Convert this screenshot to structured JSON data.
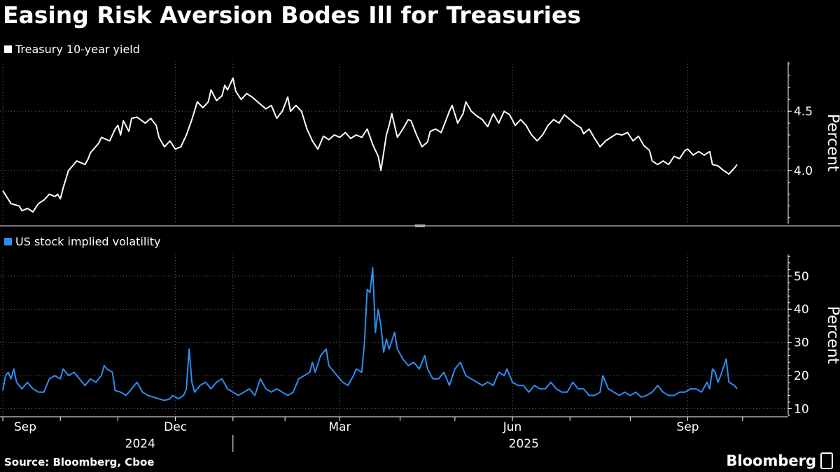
{
  "title": "Easing Risk Aversion Bodes Ill for Treasuries",
  "source": "Source: Bloomberg, Cboe",
  "brand": "Bloomberg",
  "colors": {
    "yield": "#ffffff",
    "vix": "#2e8ef0",
    "grid": "#666666",
    "background": "#000000"
  },
  "x_axis": {
    "months": [
      {
        "label": "Sep",
        "idx": 0
      },
      {
        "label": "Dec",
        "idx": 63
      },
      {
        "label": "Mar",
        "idx": 123
      },
      {
        "label": "Jun",
        "idx": 186
      },
      {
        "label": "Sep",
        "idx": 250
      }
    ],
    "minor_ticks": [
      21,
      42,
      84,
      103,
      145,
      165,
      207,
      229,
      270
    ],
    "years": [
      {
        "label": "2024",
        "idx": 20
      },
      {
        "label": "2025",
        "idx": 160
      }
    ],
    "year_divider_idx": 84,
    "n_points": 281
  },
  "chart_data": [
    {
      "type": "line",
      "title": "",
      "legend": "Treasury 10-year yield",
      "ylabel": "Percent",
      "ylim": [
        3.55,
        4.92
      ],
      "yticks": [
        4.0,
        4.5
      ],
      "ytick_labels": [
        "4.0",
        "4.5"
      ],
      "anchors": [
        [
          0,
          3.83
        ],
        [
          3,
          3.72
        ],
        [
          6,
          3.7
        ],
        [
          7,
          3.66
        ],
        [
          9,
          3.68
        ],
        [
          11,
          3.65
        ],
        [
          13,
          3.72
        ],
        [
          15,
          3.75
        ],
        [
          17,
          3.8
        ],
        [
          19,
          3.78
        ],
        [
          20,
          3.8
        ],
        [
          21,
          3.76
        ],
        [
          22,
          3.85
        ],
        [
          24,
          4.0
        ],
        [
          27,
          4.08
        ],
        [
          30,
          4.05
        ],
        [
          31,
          4.09
        ],
        [
          32,
          4.15
        ],
        [
          35,
          4.23
        ],
        [
          36,
          4.28
        ],
        [
          39,
          4.25
        ],
        [
          41,
          4.35
        ],
        [
          42,
          4.38
        ],
        [
          43,
          4.3
        ],
        [
          44,
          4.42
        ],
        [
          46,
          4.33
        ],
        [
          47,
          4.44
        ],
        [
          49,
          4.45
        ],
        [
          52,
          4.4
        ],
        [
          54,
          4.44
        ],
        [
          56,
          4.38
        ],
        [
          57,
          4.28
        ],
        [
          59,
          4.2
        ],
        [
          61,
          4.25
        ],
        [
          63,
          4.18
        ],
        [
          65,
          4.2
        ],
        [
          67,
          4.3
        ],
        [
          69,
          4.43
        ],
        [
          71,
          4.58
        ],
        [
          73,
          4.53
        ],
        [
          75,
          4.58
        ],
        [
          76,
          4.68
        ],
        [
          78,
          4.59
        ],
        [
          80,
          4.63
        ],
        [
          81,
          4.72
        ],
        [
          82,
          4.68
        ],
        [
          84,
          4.78
        ],
        [
          85,
          4.67
        ],
        [
          87,
          4.6
        ],
        [
          89,
          4.65
        ],
        [
          91,
          4.62
        ],
        [
          94,
          4.56
        ],
        [
          96,
          4.52
        ],
        [
          98,
          4.55
        ],
        [
          100,
          4.44
        ],
        [
          102,
          4.5
        ],
        [
          103,
          4.56
        ],
        [
          104,
          4.62
        ],
        [
          105,
          4.5
        ],
        [
          107,
          4.55
        ],
        [
          109,
          4.5
        ],
        [
          111,
          4.35
        ],
        [
          113,
          4.25
        ],
        [
          115,
          4.18
        ],
        [
          117,
          4.29
        ],
        [
          119,
          4.26
        ],
        [
          121,
          4.3
        ],
        [
          123,
          4.28
        ],
        [
          125,
          4.32
        ],
        [
          127,
          4.27
        ],
        [
          129,
          4.3
        ],
        [
          131,
          4.28
        ],
        [
          133,
          4.35
        ],
        [
          135,
          4.22
        ],
        [
          137,
          4.12
        ],
        [
          138,
          4.0
        ],
        [
          140,
          4.3
        ],
        [
          141,
          4.38
        ],
        [
          142,
          4.48
        ],
        [
          144,
          4.28
        ],
        [
          146,
          4.35
        ],
        [
          148,
          4.43
        ],
        [
          149,
          4.42
        ],
        [
          151,
          4.3
        ],
        [
          153,
          4.2
        ],
        [
          155,
          4.24
        ],
        [
          156,
          4.33
        ],
        [
          158,
          4.35
        ],
        [
          160,
          4.32
        ],
        [
          162,
          4.44
        ],
        [
          163,
          4.5
        ],
        [
          164,
          4.55
        ],
        [
          166,
          4.4
        ],
        [
          168,
          4.48
        ],
        [
          169,
          4.58
        ],
        [
          171,
          4.5
        ],
        [
          173,
          4.46
        ],
        [
          175,
          4.43
        ],
        [
          177,
          4.37
        ],
        [
          179,
          4.48
        ],
        [
          181,
          4.4
        ],
        [
          183,
          4.5
        ],
        [
          185,
          4.47
        ],
        [
          187,
          4.38
        ],
        [
          189,
          4.43
        ],
        [
          191,
          4.38
        ],
        [
          193,
          4.3
        ],
        [
          195,
          4.25
        ],
        [
          197,
          4.3
        ],
        [
          199,
          4.38
        ],
        [
          201,
          4.43
        ],
        [
          203,
          4.4
        ],
        [
          205,
          4.47
        ],
        [
          207,
          4.43
        ],
        [
          209,
          4.39
        ],
        [
          211,
          4.36
        ],
        [
          212,
          4.31
        ],
        [
          214,
          4.35
        ],
        [
          216,
          4.27
        ],
        [
          218,
          4.2
        ],
        [
          220,
          4.25
        ],
        [
          222,
          4.28
        ],
        [
          224,
          4.31
        ],
        [
          226,
          4.3
        ],
        [
          228,
          4.32
        ],
        [
          230,
          4.25
        ],
        [
          232,
          4.29
        ],
        [
          234,
          4.21
        ],
        [
          236,
          4.17
        ],
        [
          237,
          4.08
        ],
        [
          239,
          4.05
        ],
        [
          241,
          4.08
        ],
        [
          243,
          4.05
        ],
        [
          245,
          4.12
        ],
        [
          247,
          4.1
        ],
        [
          249,
          4.17
        ],
        [
          250,
          4.18
        ],
        [
          252,
          4.13
        ],
        [
          254,
          4.16
        ],
        [
          256,
          4.13
        ],
        [
          258,
          4.16
        ],
        [
          259,
          4.05
        ],
        [
          261,
          4.04
        ],
        [
          263,
          4.0
        ],
        [
          265,
          3.97
        ],
        [
          267,
          4.02
        ],
        [
          268,
          4.05
        ]
      ]
    },
    {
      "type": "line",
      "title": "",
      "legend": "US stock implied volatility",
      "ylabel": "Percent",
      "ylim": [
        8,
        56.5
      ],
      "yticks": [
        10,
        20,
        30,
        40,
        50
      ],
      "ytick_labels": [
        "10",
        "20",
        "30",
        "40",
        "50"
      ],
      "anchors": [
        [
          0,
          15.5
        ],
        [
          1,
          20
        ],
        [
          2,
          21
        ],
        [
          3,
          19
        ],
        [
          4,
          22
        ],
        [
          5,
          18
        ],
        [
          7,
          16
        ],
        [
          9,
          18
        ],
        [
          11,
          16
        ],
        [
          13,
          15
        ],
        [
          15,
          15
        ],
        [
          17,
          19
        ],
        [
          19,
          20
        ],
        [
          21,
          19
        ],
        [
          22,
          22
        ],
        [
          24,
          20
        ],
        [
          26,
          21
        ],
        [
          28,
          19
        ],
        [
          30,
          17
        ],
        [
          32,
          19
        ],
        [
          34,
          18
        ],
        [
          36,
          20
        ],
        [
          37,
          23
        ],
        [
          38,
          22
        ],
        [
          40,
          21
        ],
        [
          41,
          15.5
        ],
        [
          43,
          15
        ],
        [
          45,
          14
        ],
        [
          47,
          16
        ],
        [
          49,
          18
        ],
        [
          51,
          15
        ],
        [
          53,
          14
        ],
        [
          55,
          13.5
        ],
        [
          57,
          13
        ],
        [
          59,
          12.5
        ],
        [
          61,
          13
        ],
        [
          62,
          14
        ],
        [
          64,
          13
        ],
        [
          66,
          14
        ],
        [
          67,
          16
        ],
        [
          68,
          28
        ],
        [
          69,
          18
        ],
        [
          70,
          15
        ],
        [
          72,
          17
        ],
        [
          74,
          18
        ],
        [
          76,
          16
        ],
        [
          78,
          18
        ],
        [
          80,
          19
        ],
        [
          82,
          16
        ],
        [
          84,
          15
        ],
        [
          86,
          14
        ],
        [
          88,
          15
        ],
        [
          90,
          16
        ],
        [
          92,
          14
        ],
        [
          94,
          19
        ],
        [
          96,
          16
        ],
        [
          98,
          15
        ],
        [
          100,
          16
        ],
        [
          102,
          15
        ],
        [
          104,
          14
        ],
        [
          106,
          15
        ],
        [
          108,
          19
        ],
        [
          110,
          20
        ],
        [
          112,
          21
        ],
        [
          113,
          24
        ],
        [
          114,
          21
        ],
        [
          116,
          26
        ],
        [
          118,
          28
        ],
        [
          119,
          23
        ],
        [
          120,
          22
        ],
        [
          122,
          20
        ],
        [
          124,
          18
        ],
        [
          126,
          17
        ],
        [
          128,
          20
        ],
        [
          129,
          22
        ],
        [
          131,
          21
        ],
        [
          132,
          30
        ],
        [
          133,
          46
        ],
        [
          134,
          45
        ],
        [
          135,
          52.5
        ],
        [
          136,
          33
        ],
        [
          137,
          40
        ],
        [
          138,
          35
        ],
        [
          139,
          27
        ],
        [
          140,
          31
        ],
        [
          141,
          28
        ],
        [
          143,
          33
        ],
        [
          144,
          28
        ],
        [
          146,
          25
        ],
        [
          148,
          23
        ],
        [
          150,
          24
        ],
        [
          152,
          22
        ],
        [
          154,
          26
        ],
        [
          155,
          22
        ],
        [
          157,
          19
        ],
        [
          159,
          19
        ],
        [
          161,
          21
        ],
        [
          163,
          17
        ],
        [
          165,
          22
        ],
        [
          167,
          24
        ],
        [
          169,
          20
        ],
        [
          171,
          19
        ],
        [
          173,
          18
        ],
        [
          175,
          17
        ],
        [
          177,
          18
        ],
        [
          179,
          17
        ],
        [
          181,
          21
        ],
        [
          183,
          20
        ],
        [
          184,
          22
        ],
        [
          186,
          18
        ],
        [
          188,
          17
        ],
        [
          190,
          17
        ],
        [
          192,
          15
        ],
        [
          194,
          17
        ],
        [
          196,
          16
        ],
        [
          198,
          16
        ],
        [
          200,
          18
        ],
        [
          202,
          16
        ],
        [
          204,
          15
        ],
        [
          206,
          15
        ],
        [
          208,
          18
        ],
        [
          210,
          16
        ],
        [
          212,
          16
        ],
        [
          214,
          14
        ],
        [
          216,
          14
        ],
        [
          218,
          15
        ],
        [
          219,
          20
        ],
        [
          221,
          16
        ],
        [
          223,
          15
        ],
        [
          225,
          14
        ],
        [
          227,
          15
        ],
        [
          229,
          14
        ],
        [
          231,
          15
        ],
        [
          233,
          13.5
        ],
        [
          235,
          14
        ],
        [
          237,
          15
        ],
        [
          239,
          17
        ],
        [
          241,
          15
        ],
        [
          243,
          14
        ],
        [
          245,
          14
        ],
        [
          247,
          15
        ],
        [
          249,
          15
        ],
        [
          251,
          16
        ],
        [
          253,
          16
        ],
        [
          255,
          15
        ],
        [
          257,
          18
        ],
        [
          258,
          16
        ],
        [
          259,
          22
        ],
        [
          260,
          21
        ],
        [
          261,
          18
        ],
        [
          262,
          20
        ],
        [
          264,
          25
        ],
        [
          265,
          18
        ],
        [
          267,
          17
        ],
        [
          268,
          16
        ]
      ]
    }
  ]
}
